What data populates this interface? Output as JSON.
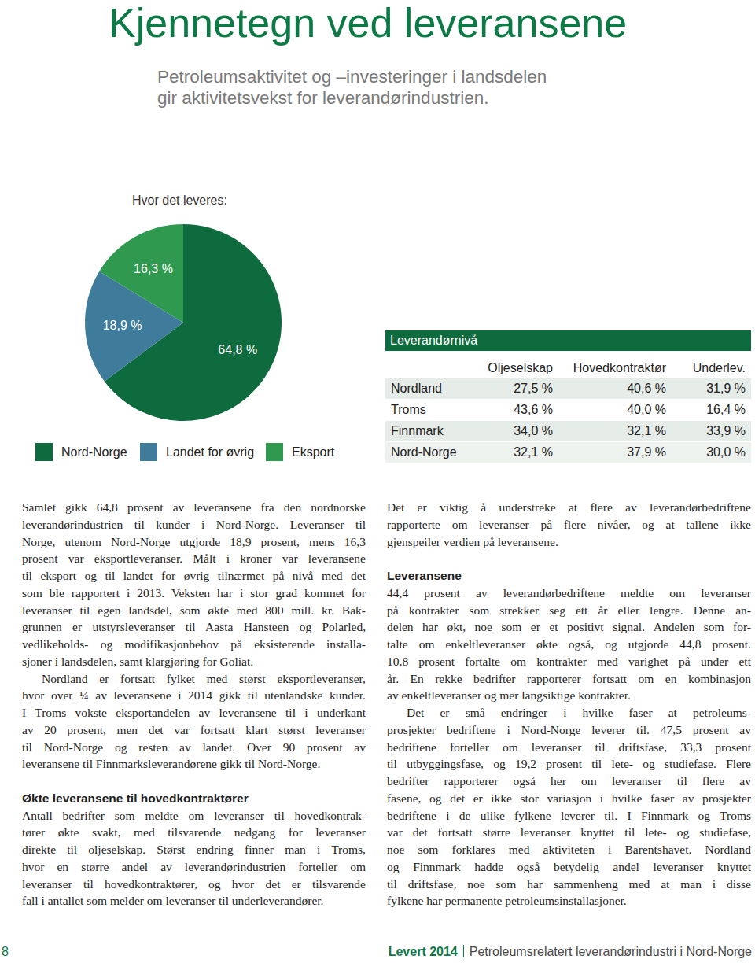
{
  "header": {
    "title": "Kjennetegn ved leveransene",
    "subtitle": [
      "Petroleumsaktivitet og –investeringer i landsdelen",
      "gir aktivitetsvekst for leverandørindustrien."
    ]
  },
  "chart_data": {
    "type": "pie",
    "title": "Hvor det leveres:",
    "categories": [
      "Nord-Norge",
      "Landet for øvrig",
      "Eksport"
    ],
    "values": [
      64.8,
      18.9,
      16.3
    ],
    "value_labels": [
      "64,8 %",
      "18,9 %",
      "16,3 %"
    ],
    "colors": [
      "#0d6b3e",
      "#3f7b9a",
      "#2f9a4f"
    ],
    "data_labels": true,
    "legend": "bottom"
  },
  "table": {
    "title": "Leverandørnivå",
    "columns": [
      "Oljeselskap",
      "Hovedkontraktør",
      "Underlev."
    ],
    "rows": [
      {
        "label": "Nordland",
        "cells": [
          "27,5 %",
          "40,6 %",
          "31,9 %"
        ]
      },
      {
        "label": "Troms",
        "cells": [
          "43,6 %",
          "40,0 %",
          "16,4 %"
        ]
      },
      {
        "label": "Finnmark",
        "cells": [
          "34,0 %",
          "32,1 %",
          "33,9 %"
        ]
      },
      {
        "label": "Nord-Norge",
        "cells": [
          "32,1 %",
          "37,9 %",
          "30,0 %"
        ]
      }
    ]
  },
  "body": {
    "left": [
      {
        "kind": "paragraph",
        "indent": false,
        "lines": [
          "Samlet gikk 64,8 prosent av leveransene fra den nordnorske",
          "leverandørindustrien til kunder i Nord-Norge. Leveranser til",
          "Norge, utenom Nord-Norge utgjorde 18,9 prosent, mens 16,3",
          "prosent var eksportleveranser. Målt i kroner var leveransene",
          "til eksport og til landet for øvrig tilnærmet på nivå med det",
          "som ble rapportert i 2013. Veksten har i stor grad kommet for",
          "leveranser til egen landsdel, som økte med 800 mill. kr. Bak-",
          "grunnen er utstyrsleveranser til Aasta Hansteen og Polarled,",
          "vedlikeholds- og modifikasjonbehov på eksisterende installa-",
          "sjoner i landsdelen, samt klargjøring for Goliat."
        ]
      },
      {
        "kind": "paragraph",
        "indent": true,
        "lines": [
          "Nordland er fortsatt fylket med størst eksportleveranser,",
          "hvor over ¼ av leveransene i 2014 gikk til utenlandske kunder.",
          "I Troms vokste eksportandelen av leveransene til i underkant",
          "av 20 prosent, men det var fortsatt klart størst leveranser",
          "til Nord-Norge og resten av landet. Over 90 prosent av",
          "leveransene til Finnmarksleverandørene gikk til Nord-Norge."
        ]
      },
      {
        "kind": "heading",
        "text": "Økte leveransene til hovedkontraktører"
      },
      {
        "kind": "paragraph",
        "indent": false,
        "lines": [
          "Antall bedrifter som meldte om leveranser til hovedkontrak-",
          "tører økte svakt, med tilsvarende nedgang for leveranser",
          "direkte til oljeselskap. Størst endring finner man i Troms,",
          "hvor en større andel av leverandørindustrien forteller om",
          "leveranser til hovedkontraktører, og hvor det er tilsvarende",
          "fall i antallet som melder om leveranser til underleverandører."
        ]
      }
    ],
    "right": [
      {
        "kind": "paragraph",
        "indent": false,
        "lines": [
          "Det er viktig å understreke at flere av leverandørbedriftene",
          "rapporterte om leveranser på flere nivåer, og at tallene ikke",
          "gjenspeiler verdien på leveransene."
        ]
      },
      {
        "kind": "heading",
        "text": "Leveransene"
      },
      {
        "kind": "paragraph",
        "indent": false,
        "lines": [
          "44,4 prosent av leverandørbedriftene meldte om leveranser",
          "på kontrakter som strekker seg ett år eller lengre. Denne an-",
          "delen har økt, noe som er et positivt signal. Andelen som for-",
          "talte om enkeltleveranser økte også, og utgjorde 44,8 prosent.",
          "10,8 prosent fortalte om kontrakter med varighet på under ett",
          "år. En rekke bedrifter rapporterer fortsatt om en kombinasjon",
          "av enkeltleveranser og mer langsiktige kontrakter."
        ]
      },
      {
        "kind": "paragraph",
        "indent": true,
        "lines": [
          "Det er små endringer i hvilke faser at petroleums-",
          "prosjekter bedriftene i Nord-Norge leverer til. 47,5 prosent av",
          "bedriftene forteller om leveranser til driftsfase, 33,3 prosent",
          "til utbyggingsfase, og 19,2 prosent til lete- og studiefase. Flere",
          "bedrifter rapporterer også her om leveranser til flere av",
          "fasene, og det er ikke stor variasjon i hvilke faser av prosjekter",
          "bedriftene i de ulike fylkene leverer til. I Finnmark og Troms",
          "var det fortsatt større leveranser knyttet til lete- og studiefase,",
          "noe som forklares med aktiviteten i Barentshavet. Nordland",
          "og Finnmark hadde også betydelig andel leveranser knyttet",
          "til driftsfase, noe som har sammenheng med at man i disse",
          "fylkene har permanente petroleumsinstallasjoner."
        ]
      }
    ]
  },
  "footer": {
    "page": "8",
    "publication": "Levert 2014",
    "series": "Petroleumsrelatert leverandørindustri i Nord-Norge"
  }
}
